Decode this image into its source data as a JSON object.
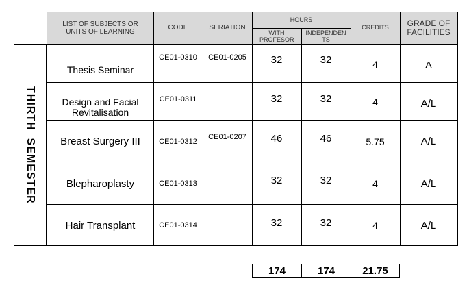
{
  "header": {
    "subjects": "LIST OF SUBJECTS OR UNITS OF LEARNING",
    "code": "CODE",
    "seriation": "SERIATION",
    "hours": "HOURS",
    "with_profesor": "WITH PROFESOR",
    "independents": "INDEPENDEN TS",
    "credits": "CREDITS",
    "grade": "GRADE OF FACILITIES"
  },
  "semester_label": "THIRTH  SEMESTER",
  "rows": [
    {
      "subject": "Thesis Seminar",
      "code": "CE01-0310",
      "seriation": "CE01-0205",
      "with_profesor": "32",
      "independents": "32",
      "credits": "4",
      "grade": "A"
    },
    {
      "subject": "Design and Facial Revitalisation",
      "code": "CE01-0311",
      "seriation": "",
      "with_profesor": "32",
      "independents": "32",
      "credits": "4",
      "grade": "A/L"
    },
    {
      "subject": "Breast Surgery III",
      "code": "CE01-0312",
      "seriation": "CE01-0207",
      "with_profesor": "46",
      "independents": "46",
      "credits": "5.75",
      "grade": "A/L"
    },
    {
      "subject": "Blepharoplasty",
      "code": "CE01-0313",
      "seriation": "",
      "with_profesor": "32",
      "independents": "32",
      "credits": "4",
      "grade": "A/L"
    },
    {
      "subject": "Hair Transplant",
      "code": "CE01-0314",
      "seriation": "",
      "with_profesor": "32",
      "independents": "32",
      "credits": "4",
      "grade": "A/L"
    }
  ],
  "totals": {
    "with_profesor": "174",
    "independents": "174",
    "credits": "21.75"
  }
}
